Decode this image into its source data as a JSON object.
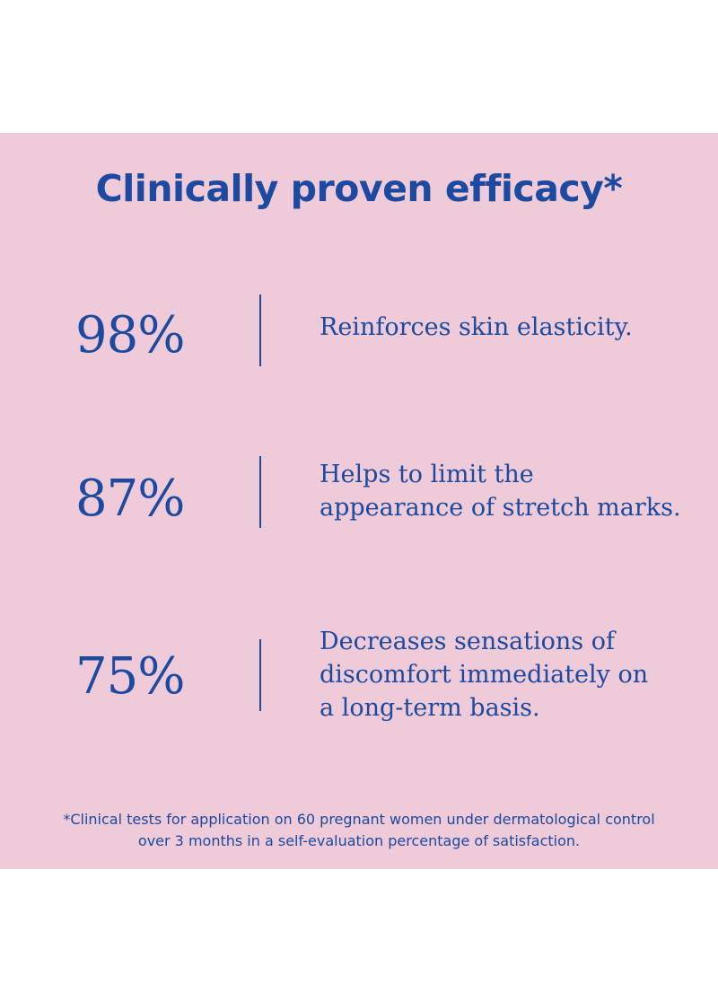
{
  "title": "Clinically proven efficacy*",
  "stats": [
    {
      "value": "98%",
      "description": "Reinforces skin elasticity."
    },
    {
      "value": "87%",
      "description": "Helps to limit the\nappearance of stretch marks."
    },
    {
      "value": "75%",
      "description": "Decreases sensations of\ndiscomfort immediately on\na long-term basis."
    }
  ],
  "footnote": "*Clinical tests for application on 60 pregnant women under dermatological control\nover 3 months in a self-evaluation percentage of satisfaction.",
  "colors": {
    "background": "#efcad8",
    "text": "#1b4aa0",
    "page": "#ffffff"
  }
}
